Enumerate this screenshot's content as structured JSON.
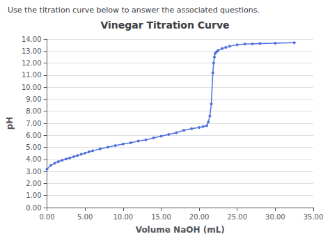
{
  "chart_data": {
    "type": "line",
    "title": "Vinegar Titration Curve",
    "subtitle": "Use the titration curve below to answer the associated questions.",
    "xlabel": "Volume NaOH (mL)",
    "ylabel": "pH",
    "x": [
      0.0,
      0.5,
      1.0,
      1.5,
      2.0,
      2.5,
      3.0,
      3.5,
      4.0,
      4.5,
      5.0,
      5.5,
      6.0,
      7.0,
      8.0,
      9.0,
      10.0,
      11.0,
      12.0,
      13.0,
      14.0,
      15.0,
      16.0,
      17.0,
      18.0,
      19.0,
      20.0,
      20.5,
      21.0,
      21.2,
      21.4,
      21.6,
      21.8,
      21.9,
      22.0,
      22.1,
      22.3,
      22.5,
      23.0,
      23.5,
      24.0,
      25.0,
      26.0,
      27.0,
      28.0,
      30.0,
      32.5
    ],
    "values": [
      3.2,
      3.5,
      3.68,
      3.82,
      3.93,
      4.03,
      4.12,
      4.22,
      4.32,
      4.42,
      4.52,
      4.63,
      4.72,
      4.88,
      5.02,
      5.15,
      5.28,
      5.38,
      5.52,
      5.62,
      5.78,
      5.93,
      6.08,
      6.22,
      6.42,
      6.55,
      6.65,
      6.72,
      6.8,
      7.1,
      7.6,
      8.6,
      11.2,
      12.0,
      12.5,
      12.8,
      12.95,
      13.05,
      13.2,
      13.3,
      13.4,
      13.52,
      13.58,
      13.6,
      13.62,
      13.65,
      13.7
    ],
    "xlim": [
      0,
      35
    ],
    "ylim": [
      0,
      14
    ],
    "xticks": [
      {
        "value": 0,
        "label": "0.00"
      },
      {
        "value": 5,
        "label": "5.00"
      },
      {
        "value": 10,
        "label": "10.00"
      },
      {
        "value": 15,
        "label": "15.00"
      },
      {
        "value": 20,
        "label": "20.00"
      },
      {
        "value": 25,
        "label": "25.00"
      },
      {
        "value": 30,
        "label": "30.00"
      },
      {
        "value": 35,
        "label": "35.00"
      }
    ],
    "yticks": [
      {
        "value": 0,
        "label": "0.00"
      },
      {
        "value": 1,
        "label": "1.00"
      },
      {
        "value": 2,
        "label": "2.00"
      },
      {
        "value": 3,
        "label": "3.00"
      },
      {
        "value": 4,
        "label": "4.00"
      },
      {
        "value": 5,
        "label": "5.00"
      },
      {
        "value": 6,
        "label": "6.00"
      },
      {
        "value": 7,
        "label": "7.00"
      },
      {
        "value": 8,
        "label": "8.00"
      },
      {
        "value": 9,
        "label": "9.00"
      },
      {
        "value": 10,
        "label": "10.00"
      },
      {
        "value": 11,
        "label": "11.00"
      },
      {
        "value": 12,
        "label": "12.00"
      },
      {
        "value": 13,
        "label": "13.00"
      },
      {
        "value": 14,
        "label": "14.00"
      }
    ],
    "grid": "y",
    "marker": "circle"
  }
}
